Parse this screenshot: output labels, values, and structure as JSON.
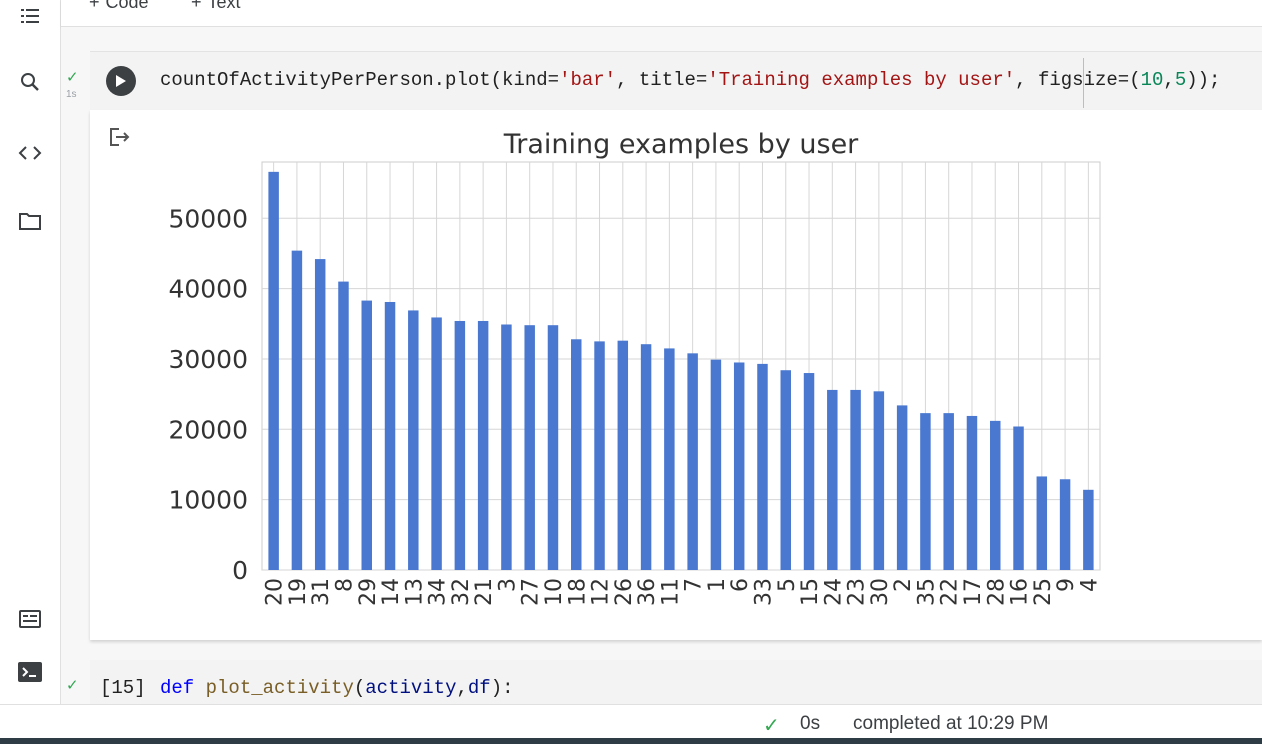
{
  "toolbar": {
    "code_label": "Code",
    "text_label": "Text",
    "plus": "+"
  },
  "rail": {
    "icons": [
      "toc-icon",
      "search-icon",
      "code-snippets-icon",
      "folder-icon",
      "command-palette-icon",
      "terminal-icon"
    ]
  },
  "cell1": {
    "status": "✓",
    "exec_time": "1s",
    "code": {
      "p1": "countOfActivityPerPerson.plot(kind=",
      "s1": "'bar'",
      "p2": ", title=",
      "s2": "'Training examples by user'",
      "p3": ", figsize=(",
      "n1": "10",
      "p4": ",",
      "n2": "5",
      "p5": "));"
    }
  },
  "chart_data": {
    "type": "bar",
    "title": "Training examples by user",
    "xlabel": "",
    "ylabel": "",
    "ylim": [
      0,
      58000
    ],
    "yticks": [
      0,
      10000,
      20000,
      30000,
      40000,
      50000
    ],
    "grid": true,
    "bar_color": "#4a78d0",
    "categories": [
      "20",
      "19",
      "31",
      "8",
      "29",
      "14",
      "13",
      "34",
      "32",
      "21",
      "3",
      "27",
      "10",
      "18",
      "12",
      "26",
      "36",
      "11",
      "7",
      "1",
      "6",
      "33",
      "5",
      "15",
      "24",
      "23",
      "30",
      "2",
      "35",
      "22",
      "17",
      "28",
      "16",
      "25",
      "9",
      "4"
    ],
    "values": [
      56600,
      45400,
      44200,
      41000,
      38300,
      38100,
      36900,
      35900,
      35400,
      35400,
      34900,
      34800,
      34800,
      32800,
      32500,
      32600,
      32100,
      31500,
      30800,
      29900,
      29500,
      29300,
      28400,
      28000,
      25600,
      25600,
      25400,
      23400,
      22300,
      22300,
      21900,
      21200,
      20400,
      13300,
      12900,
      11400
    ]
  },
  "cell2": {
    "status": "✓",
    "prompt": "[15]",
    "code": {
      "kw": "def",
      "fn": "plot_activity",
      "p1": "(",
      "a1": "activity",
      "p2": ",",
      "a2": "df",
      "p3": "):"
    }
  },
  "statusbar": {
    "check": "✓",
    "time": "0s",
    "message": "completed at 10:29 PM"
  },
  "colors": {
    "accent_green": "#34a853",
    "string": "#a31515",
    "number": "#098658",
    "keyword": "#0000ff"
  }
}
